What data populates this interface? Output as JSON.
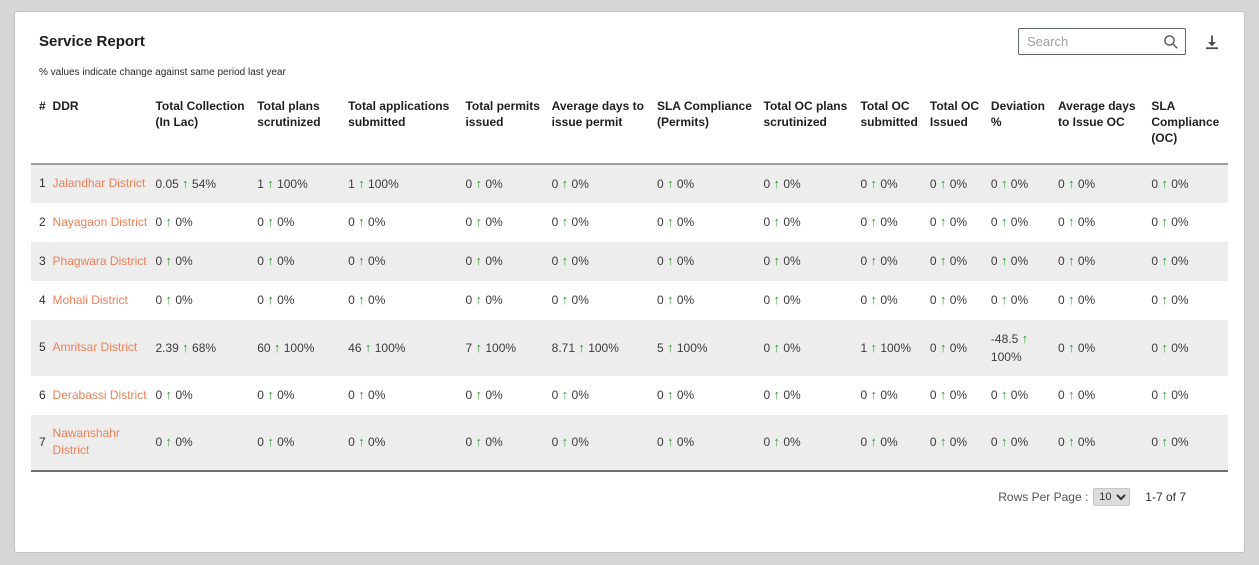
{
  "header": {
    "title": "Service Report",
    "subtitle": "% values indicate change against same period last year",
    "search_placeholder": "Search"
  },
  "colors": {
    "district_link": "#ef7f55",
    "trend_arrow_green": "#2fa12f",
    "row_stripe": "#ededed",
    "header_border": "#9d9d9d"
  },
  "table": {
    "columns": [
      "#",
      "DDR",
      "Total Collection (In Lac)",
      "Total plans scrutinized",
      "Total applications submitted",
      "Total permits issued",
      "Average days to issue permit",
      "SLA Compliance (Permits)",
      "Total OC plans scrutinized",
      "Total OC submitted",
      "Total OC Issued",
      "Deviation %",
      "Average days to Issue OC",
      "SLA Compliance (OC)"
    ],
    "rows": [
      {
        "index": "1",
        "district": "Jalandhar District",
        "cells": [
          {
            "value": "0.05",
            "pct": "54%"
          },
          {
            "value": "1",
            "pct": "100%"
          },
          {
            "value": "1",
            "pct": "100%"
          },
          {
            "value": "0",
            "pct": "0%"
          },
          {
            "value": "0",
            "pct": "0%"
          },
          {
            "value": "0",
            "pct": "0%"
          },
          {
            "value": "0",
            "pct": "0%"
          },
          {
            "value": "0",
            "pct": "0%"
          },
          {
            "value": "0",
            "pct": "0%"
          },
          {
            "value": "0",
            "pct": "0%"
          },
          {
            "value": "0",
            "pct": "0%"
          },
          {
            "value": "0",
            "pct": "0%"
          }
        ]
      },
      {
        "index": "2",
        "district": "Nayagaon District",
        "cells": [
          {
            "value": "0",
            "pct": "0%"
          },
          {
            "value": "0",
            "pct": "0%"
          },
          {
            "value": "0",
            "pct": "0%"
          },
          {
            "value": "0",
            "pct": "0%"
          },
          {
            "value": "0",
            "pct": "0%"
          },
          {
            "value": "0",
            "pct": "0%"
          },
          {
            "value": "0",
            "pct": "0%"
          },
          {
            "value": "0",
            "pct": "0%"
          },
          {
            "value": "0",
            "pct": "0%"
          },
          {
            "value": "0",
            "pct": "0%"
          },
          {
            "value": "0",
            "pct": "0%"
          },
          {
            "value": "0",
            "pct": "0%"
          }
        ]
      },
      {
        "index": "3",
        "district": "Phagwara District",
        "cells": [
          {
            "value": "0",
            "pct": "0%"
          },
          {
            "value": "0",
            "pct": "0%"
          },
          {
            "value": "0",
            "pct": "0%"
          },
          {
            "value": "0",
            "pct": "0%"
          },
          {
            "value": "0",
            "pct": "0%"
          },
          {
            "value": "0",
            "pct": "0%"
          },
          {
            "value": "0",
            "pct": "0%"
          },
          {
            "value": "0",
            "pct": "0%"
          },
          {
            "value": "0",
            "pct": "0%"
          },
          {
            "value": "0",
            "pct": "0%"
          },
          {
            "value": "0",
            "pct": "0%"
          },
          {
            "value": "0",
            "pct": "0%"
          }
        ]
      },
      {
        "index": "4",
        "district": "Mohali District",
        "cells": [
          {
            "value": "0",
            "pct": "0%"
          },
          {
            "value": "0",
            "pct": "0%"
          },
          {
            "value": "0",
            "pct": "0%"
          },
          {
            "value": "0",
            "pct": "0%"
          },
          {
            "value": "0",
            "pct": "0%"
          },
          {
            "value": "0",
            "pct": "0%"
          },
          {
            "value": "0",
            "pct": "0%"
          },
          {
            "value": "0",
            "pct": "0%"
          },
          {
            "value": "0",
            "pct": "0%"
          },
          {
            "value": "0",
            "pct": "0%"
          },
          {
            "value": "0",
            "pct": "0%"
          },
          {
            "value": "0",
            "pct": "0%"
          }
        ]
      },
      {
        "index": "5",
        "district": "Amritsar District",
        "cells": [
          {
            "value": "2.39",
            "pct": "68%"
          },
          {
            "value": "60",
            "pct": "100%"
          },
          {
            "value": "46",
            "pct": "100%"
          },
          {
            "value": "7",
            "pct": "100%"
          },
          {
            "value": "8.71",
            "pct": "100%"
          },
          {
            "value": "5",
            "pct": "100%"
          },
          {
            "value": "0",
            "pct": "0%"
          },
          {
            "value": "1",
            "pct": "100%"
          },
          {
            "value": "0",
            "pct": "0%"
          },
          {
            "value": "-48.5",
            "pct": "100%"
          },
          {
            "value": "0",
            "pct": "0%"
          },
          {
            "value": "0",
            "pct": "0%"
          }
        ]
      },
      {
        "index": "6",
        "district": "Derabassi District",
        "cells": [
          {
            "value": "0",
            "pct": "0%"
          },
          {
            "value": "0",
            "pct": "0%"
          },
          {
            "value": "0",
            "pct": "0%"
          },
          {
            "value": "0",
            "pct": "0%"
          },
          {
            "value": "0",
            "pct": "0%"
          },
          {
            "value": "0",
            "pct": "0%"
          },
          {
            "value": "0",
            "pct": "0%"
          },
          {
            "value": "0",
            "pct": "0%"
          },
          {
            "value": "0",
            "pct": "0%"
          },
          {
            "value": "0",
            "pct": "0%"
          },
          {
            "value": "0",
            "pct": "0%"
          },
          {
            "value": "0",
            "pct": "0%"
          }
        ]
      },
      {
        "index": "7",
        "district": "Nawanshahr District",
        "cells": [
          {
            "value": "0",
            "pct": "0%"
          },
          {
            "value": "0",
            "pct": "0%"
          },
          {
            "value": "0",
            "pct": "0%"
          },
          {
            "value": "0",
            "pct": "0%"
          },
          {
            "value": "0",
            "pct": "0%"
          },
          {
            "value": "0",
            "pct": "0%"
          },
          {
            "value": "0",
            "pct": "0%"
          },
          {
            "value": "0",
            "pct": "0%"
          },
          {
            "value": "0",
            "pct": "0%"
          },
          {
            "value": "0",
            "pct": "0%"
          },
          {
            "value": "0",
            "pct": "0%"
          },
          {
            "value": "0",
            "pct": "0%"
          }
        ]
      }
    ]
  },
  "footer": {
    "rows_per_page_label": "Rows Per Page :",
    "rows_per_page_value": "10",
    "rows_per_page_options": [
      "10"
    ],
    "range_label": "1-7 of 7"
  }
}
